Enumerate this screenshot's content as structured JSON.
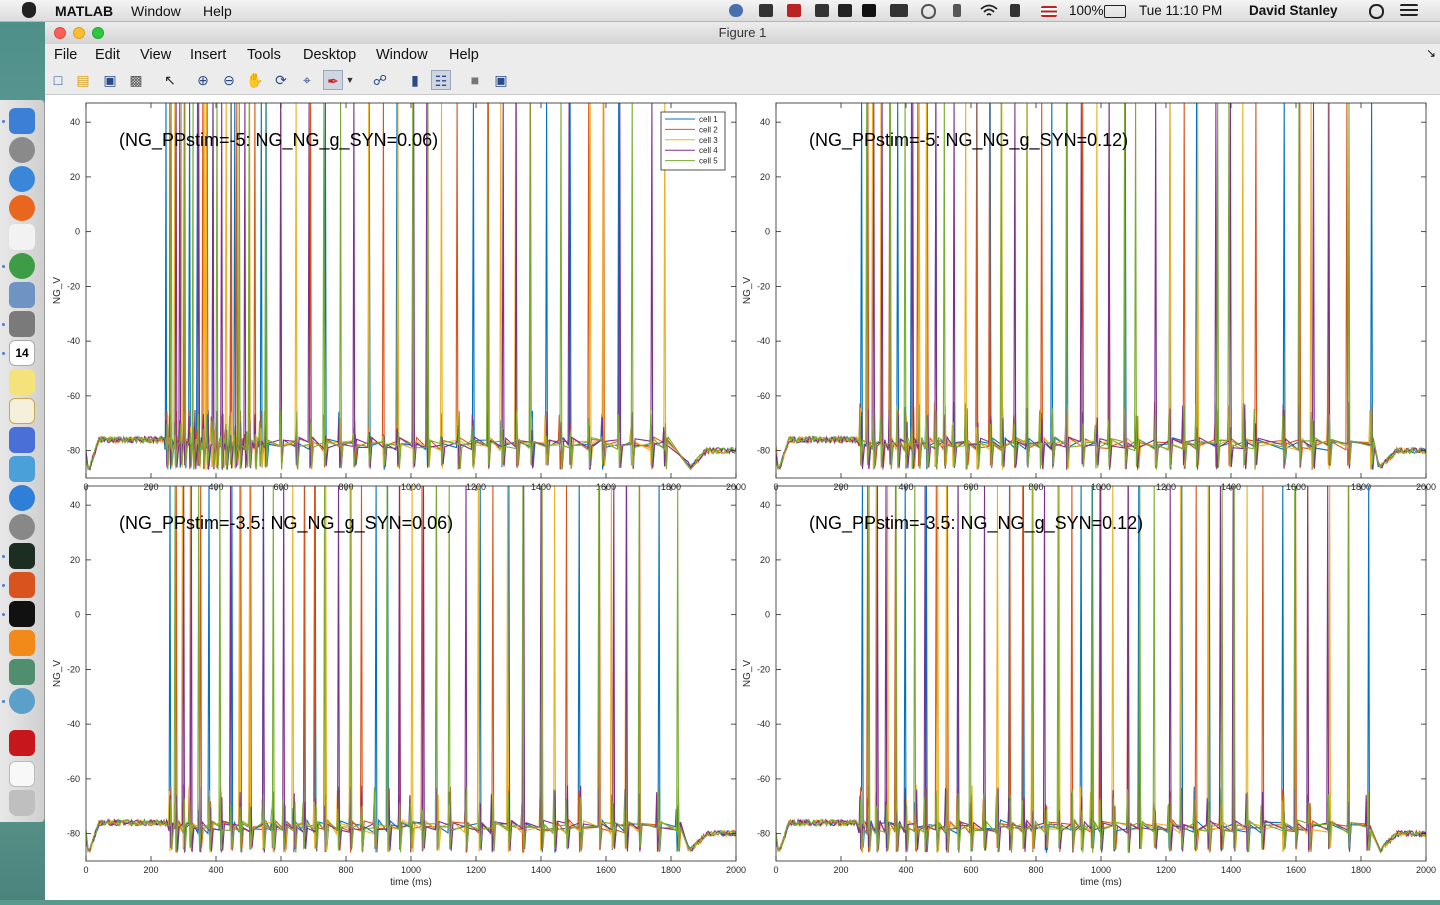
{
  "menubar": {
    "app_name": "MATLAB",
    "menus": [
      "Window",
      "Help"
    ],
    "battery": "100%",
    "clock": "Tue 11:10 PM",
    "user": "David Stanley"
  },
  "dock": {
    "icons": [
      "finder-icon",
      "launchpad-icon",
      "safari-icon",
      "firefox-icon",
      "app-grid-icon",
      "chrome-icon",
      "preview-icon",
      "photo-icon",
      "calendar-icon",
      "notes-icon",
      "textedit-icon",
      "charts-icon",
      "network-icon",
      "app-store-icon",
      "system-preferences-icon",
      "activity-monitor-icon",
      "matlab-icon",
      "terminal-icon",
      "vlc-icon",
      "image-viewer-icon",
      "sync-icon",
      "acrobat-icon",
      "document-icon",
      "trash-icon"
    ],
    "calendar_date": "14"
  },
  "window": {
    "title": "Figure 1",
    "menus": [
      "File",
      "Edit",
      "View",
      "Insert",
      "Tools",
      "Desktop",
      "Window",
      "Help"
    ],
    "toolbar": [
      "new-figure-icon",
      "open-file-icon",
      "save-icon",
      "print-icon",
      "pointer-icon",
      "zoom-in-icon",
      "zoom-out-icon",
      "pan-hand-icon",
      "rotate-icon",
      "data-cursor-icon",
      "brush-icon",
      "brush-dropdown-icon",
      "link-icon",
      "colorbar-icon",
      "legend-icon",
      "hide-plot-tools-icon",
      "show-plot-tools-icon"
    ]
  },
  "colors": {
    "cell1": "#0072bd",
    "cell2": "#d95319",
    "cell3": "#edb120",
    "cell4": "#7e2f8e",
    "cell5": "#77ac30"
  },
  "chart_data": [
    {
      "type": "line",
      "title": "(NG_PPstim=-5: NG_NG_g_SYN=0.06)",
      "xlabel": "",
      "ylabel": "NG_V",
      "xlim": [
        0,
        2000
      ],
      "ylim": [
        -90,
        47
      ],
      "xticks": [
        0,
        200,
        400,
        600,
        800,
        1000,
        1200,
        1400,
        1600,
        1800,
        2000
      ],
      "yticks": [
        40,
        20,
        0,
        -20,
        -40,
        -60,
        -80
      ],
      "legend": [
        "cell 1",
        "cell 2",
        "cell 3",
        "cell 4",
        "cell 5"
      ],
      "legend_location": "top-right",
      "resting_potential": -80,
      "stim_window_ms": [
        250,
        1850
      ],
      "spike_peak": 47,
      "subthreshold_peak": -65,
      "trough": -86,
      "spike_times_ms": [
        250,
        260,
        276,
        290,
        305,
        318,
        332,
        345,
        360,
        373,
        388,
        401,
        418,
        430,
        445,
        460,
        475,
        491,
        505,
        520,
        537,
        552,
        600,
        645,
        690,
        735,
        780,
        825,
        870,
        915,
        960,
        1005,
        1050,
        1095,
        1145,
        1190,
        1235,
        1280,
        1325,
        1370,
        1415,
        1460,
        1490,
        1550,
        1590,
        1640,
        1680,
        1740,
        1780
      ]
    },
    {
      "type": "line",
      "title": "(NG_PPstim=-5: NG_NG_g_SYN=0.12)",
      "xlabel": "",
      "ylabel": "NG_V",
      "xlim": [
        0,
        2000
      ],
      "ylim": [
        -90,
        47
      ],
      "xticks": [
        0,
        200,
        400,
        600,
        800,
        1000,
        1200,
        1400,
        1600,
        1800,
        2000
      ],
      "yticks": [
        40,
        20,
        0,
        -20,
        -40,
        -60,
        -80
      ],
      "resting_potential": -80,
      "stim_window_ms": [
        250,
        1850
      ],
      "spike_peak": 47,
      "subthreshold_peak": -62,
      "trough": -86,
      "spike_times_ms": [
        262,
        280,
        300,
        325,
        350,
        375,
        400,
        420,
        440,
        465,
        490,
        520,
        545,
        585,
        620,
        660,
        695,
        735,
        770,
        815,
        850,
        895,
        940,
        985,
        1025,
        1075,
        1110,
        1165,
        1210,
        1255,
        1295,
        1355,
        1395,
        1440,
        1475,
        1560,
        1610,
        1650,
        1700,
        1760,
        1830
      ]
    },
    {
      "type": "line",
      "title": "(NG_PPstim=-3.5: NG_NG_g_SYN=0.06)",
      "xlabel": "time (ms)",
      "ylabel": "NG_V",
      "xlim": [
        0,
        2000
      ],
      "ylim": [
        -90,
        47
      ],
      "xticks": [
        0,
        200,
        400,
        600,
        800,
        1000,
        1200,
        1400,
        1600,
        1800,
        2000
      ],
      "yticks": [
        40,
        20,
        0,
        -20,
        -40,
        -60,
        -80
      ],
      "resting_potential": -80,
      "stim_window_ms": [
        250,
        1850
      ],
      "spike_peak": 47,
      "subthreshold_peak": -62,
      "trough": -86,
      "spike_times_ms": [
        260,
        278,
        300,
        320,
        350,
        380,
        415,
        445,
        475,
        505,
        545,
        575,
        610,
        640,
        670,
        705,
        735,
        775,
        815,
        850,
        890,
        930,
        965,
        1000,
        1035,
        1080,
        1120,
        1170,
        1210,
        1250,
        1300,
        1345,
        1400,
        1440,
        1480,
        1520,
        1580,
        1620,
        1660,
        1700,
        1760,
        1820
      ]
    },
    {
      "type": "line",
      "title": "(NG_PPstim=-3.5: NG_NG_g_SYN=0.12)",
      "xlabel": "time (ms)",
      "ylabel": "NG_V",
      "xlim": [
        0,
        2000
      ],
      "ylim": [
        -90,
        47
      ],
      "xticks": [
        0,
        200,
        400,
        600,
        800,
        1000,
        1200,
        1400,
        1600,
        1800,
        2000
      ],
      "yticks": [
        40,
        20,
        0,
        -20,
        -40,
        -60,
        -80
      ],
      "resting_potential": -80,
      "stim_window_ms": [
        250,
        1850
      ],
      "spike_peak": 47,
      "subthreshold_peak": -62,
      "trough": -86,
      "spike_times_ms": [
        262,
        285,
        312,
        340,
        370,
        400,
        430,
        460,
        495,
        525,
        560,
        600,
        640,
        680,
        720,
        760,
        790,
        830,
        870,
        910,
        940,
        970,
        1000,
        1040,
        1085,
        1120,
        1165,
        1210,
        1245,
        1290,
        1330,
        1370,
        1410,
        1450,
        1495,
        1560,
        1600,
        1640,
        1700,
        1760,
        1820
      ]
    }
  ]
}
